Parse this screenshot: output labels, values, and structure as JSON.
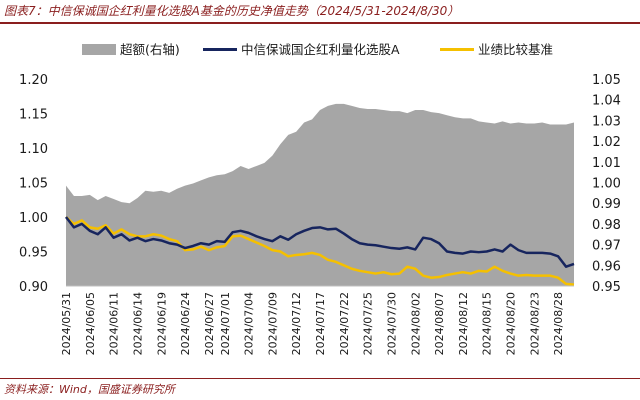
{
  "figure": {
    "title": "图表7：中信保诚国企红利量化选股A基金的历史净值走势（2024/5/31-2024/8/30）",
    "source": "资料来源：Wind，国盛证券研究所"
  },
  "colors": {
    "area": "#a6a6a6",
    "fund": "#17255e",
    "bench": "#f5c000",
    "title": "#8a1e1e"
  },
  "chart_data": {
    "type": "line",
    "x": [
      "2024/05/31",
      "2024/06/03",
      "2024/06/04",
      "2024/06/05",
      "2024/06/06",
      "2024/06/07",
      "2024/06/11",
      "2024/06/12",
      "2024/06/13",
      "2024/06/14",
      "2024/06/17",
      "2024/06/18",
      "2024/06/19",
      "2024/06/20",
      "2024/06/21",
      "2024/06/24",
      "2024/06/25",
      "2024/06/26",
      "2024/06/27",
      "2024/06/28",
      "2024/07/01",
      "2024/07/02",
      "2024/07/03",
      "2024/07/04",
      "2024/07/05",
      "2024/07/08",
      "2024/07/09",
      "2024/07/10",
      "2024/07/11",
      "2024/07/12",
      "2024/07/15",
      "2024/07/16",
      "2024/07/17",
      "2024/07/18",
      "2024/07/19",
      "2024/07/22",
      "2024/07/23",
      "2024/07/24",
      "2024/07/25",
      "2024/07/26",
      "2024/07/29",
      "2024/07/30",
      "2024/07/31",
      "2024/08/01",
      "2024/08/02",
      "2024/08/05",
      "2024/08/06",
      "2024/08/07",
      "2024/08/08",
      "2024/08/09",
      "2024/08/12",
      "2024/08/13",
      "2024/08/14",
      "2024/08/15",
      "2024/08/16",
      "2024/08/19",
      "2024/08/20",
      "2024/08/21",
      "2024/08/22",
      "2024/08/23",
      "2024/08/26",
      "2024/08/27",
      "2024/08/28",
      "2024/08/29",
      "2024/08/30"
    ],
    "x_tick_labels": [
      "2024/05/31",
      "2024/06/05",
      "2024/06/11",
      "2024/06/14",
      "2024/06/19",
      "2024/06/24",
      "2024/06/27",
      "2024/07/01",
      "2024/07/04",
      "2024/07/09",
      "2024/07/12",
      "2024/07/17",
      "2024/07/22",
      "2024/07/25",
      "2024/07/30",
      "2024/08/02",
      "2024/08/07",
      "2024/08/12",
      "2024/08/15",
      "2024/08/20",
      "2024/08/23",
      "2024/08/28"
    ],
    "legend": [
      "超额(右轴)",
      "中信保诚国企红利量化选股A",
      "业绩比较基准"
    ],
    "legend_position": "top",
    "left_axis": {
      "ylim": [
        0.9,
        1.2
      ],
      "ticks": [
        "0.90",
        "0.95",
        "1.00",
        "1.05",
        "1.10",
        "1.15",
        "1.20"
      ]
    },
    "right_axis": {
      "ylim": [
        0.95,
        1.05
      ],
      "ticks": [
        "0.95",
        "0.96",
        "0.97",
        "0.98",
        "0.99",
        "1.00",
        "1.01",
        "1.02",
        "1.03",
        "1.04",
        "1.05"
      ]
    },
    "series": [
      {
        "name": "超额(右轴)",
        "type": "area",
        "axis": "right",
        "values": [
          0.9985,
          0.9935,
          0.9935,
          0.994,
          0.9915,
          0.9935,
          0.992,
          0.9905,
          0.99,
          0.9925,
          0.996,
          0.9955,
          0.996,
          0.995,
          0.997,
          0.9985,
          0.9995,
          1.001,
          1.0025,
          1.0035,
          1.004,
          1.0055,
          1.008,
          1.0065,
          1.008,
          1.0095,
          1.013,
          1.0185,
          1.023,
          1.0245,
          1.029,
          1.0305,
          1.035,
          1.037,
          1.038,
          1.038,
          1.037,
          1.036,
          1.0355,
          1.0355,
          1.035,
          1.0345,
          1.0345,
          1.0335,
          1.035,
          1.035,
          1.034,
          1.0335,
          1.0325,
          1.0315,
          1.031,
          1.031,
          1.0295,
          1.029,
          1.0285,
          1.0295,
          1.0285,
          1.029,
          1.0285,
          1.0285,
          1.029,
          1.028,
          1.028,
          1.028,
          1.029
        ]
      },
      {
        "name": "中信保诚国企红利量化选股A",
        "type": "line",
        "axis": "left",
        "values": [
          1.0,
          0.985,
          0.99,
          0.98,
          0.975,
          0.985,
          0.97,
          0.975,
          0.966,
          0.97,
          0.965,
          0.968,
          0.966,
          0.962,
          0.96,
          0.955,
          0.958,
          0.962,
          0.96,
          0.965,
          0.964,
          0.978,
          0.98,
          0.977,
          0.972,
          0.968,
          0.965,
          0.972,
          0.967,
          0.975,
          0.98,
          0.984,
          0.985,
          0.982,
          0.983,
          0.976,
          0.968,
          0.962,
          0.96,
          0.959,
          0.957,
          0.955,
          0.954,
          0.956,
          0.953,
          0.97,
          0.968,
          0.962,
          0.95,
          0.948,
          0.947,
          0.95,
          0.949,
          0.95,
          0.953,
          0.95,
          0.96,
          0.952,
          0.948,
          0.948,
          0.948,
          0.947,
          0.943,
          0.928,
          0.932
        ]
      },
      {
        "name": "业绩比较基准",
        "type": "line",
        "axis": "left",
        "values": [
          1.0,
          0.99,
          0.995,
          0.985,
          0.983,
          0.988,
          0.976,
          0.982,
          0.975,
          0.972,
          0.972,
          0.975,
          0.973,
          0.968,
          0.965,
          0.952,
          0.953,
          0.957,
          0.952,
          0.956,
          0.958,
          0.972,
          0.973,
          0.968,
          0.963,
          0.958,
          0.952,
          0.95,
          0.943,
          0.945,
          0.946,
          0.948,
          0.945,
          0.938,
          0.935,
          0.93,
          0.925,
          0.922,
          0.92,
          0.918,
          0.92,
          0.917,
          0.918,
          0.928,
          0.925,
          0.915,
          0.912,
          0.913,
          0.916,
          0.918,
          0.92,
          0.918,
          0.922,
          0.921,
          0.928,
          0.922,
          0.918,
          0.915,
          0.916,
          0.915,
          0.915,
          0.915,
          0.912,
          0.903,
          0.902
        ]
      }
    ],
    "grid": false
  }
}
